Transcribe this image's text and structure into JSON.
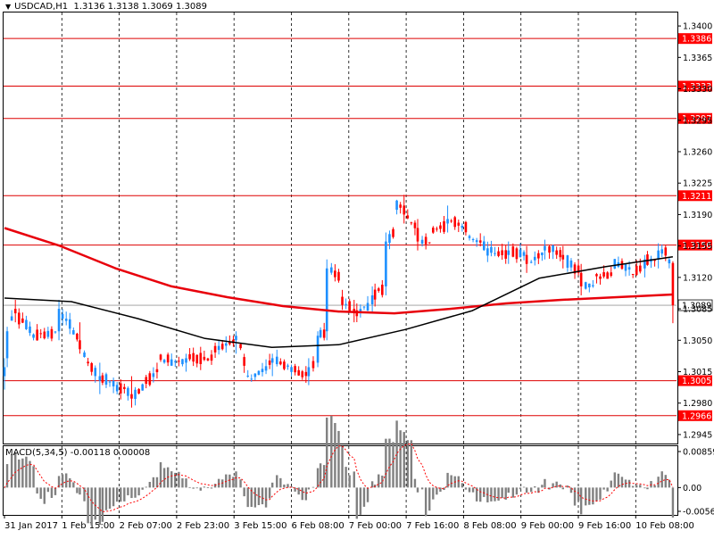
{
  "header": {
    "symbol_label": "USDCAD,H1",
    "ohlc_label": "1.3136 1.3138 1.3069 1.3089"
  },
  "macd_header": {
    "label": "MACD(5,34,5) -0.00118 0.00008"
  },
  "colors": {
    "bull": "#1e90ff",
    "bear": "#ff0000",
    "ma_slow": "#e8000b",
    "ma_fast": "#000000",
    "level_line": "#dd0000",
    "price_tag_bg": "#ff0000",
    "grid": "#000000",
    "macd_hist": "#808080",
    "macd_signal": "#ff0000"
  },
  "chart_data": {
    "type": "candlestick",
    "symbol": "USDCAD",
    "timeframe": "H1",
    "ylim": [
      1.2935,
      1.3415
    ],
    "y_ticks": [
      "1.3400",
      "1.3365",
      "1.3330",
      "1.3295",
      "1.3260",
      "1.3225",
      "1.3190",
      "1.3155",
      "1.3120",
      "1.3085",
      "1.3050",
      "1.3015",
      "1.2980",
      "1.2945"
    ],
    "x_tick_labels": [
      "31 Jan 2017",
      "1 Feb 15:00",
      "2 Feb 07:00",
      "2 Feb 23:00",
      "3 Feb 15:00",
      "6 Feb 08:00",
      "7 Feb 00:00",
      "7 Feb 16:00",
      "8 Feb 08:00",
      "9 Feb 00:00",
      "9 Feb 16:00",
      "10 Feb 08:00"
    ],
    "grid": "vertical dashed lines at each time label",
    "horizontal_levels": [
      {
        "value": 1.3386,
        "label": "1.3386"
      },
      {
        "value": 1.3333,
        "label": "1.3333"
      },
      {
        "value": 1.3297,
        "label": "1.3297"
      },
      {
        "value": 1.3211,
        "label": "1.3211"
      },
      {
        "value": 1.3156,
        "label": "1.3156"
      },
      {
        "value": 1.3005,
        "label": "1.3005"
      },
      {
        "value": 1.2966,
        "label": "1.2966"
      }
    ],
    "current_price": {
      "value": 1.3089,
      "label": "1.3089"
    },
    "moving_average_slow_red": [
      1.3175,
      1.3155,
      1.313,
      1.311,
      1.3098,
      1.3088,
      1.3082,
      1.308,
      1.3085,
      1.3091,
      1.3095,
      1.3098,
      1.3101
    ],
    "moving_average_fast_black": [
      1.3097,
      1.3093,
      1.3074,
      1.3052,
      1.3042,
      1.3045,
      1.3062,
      1.3083,
      1.3119,
      1.3132,
      1.3143
    ],
    "key_points": [
      {
        "t": 0,
        "o": 1.301,
        "h": 1.303,
        "l": 1.2995,
        "c": 1.302
      },
      {
        "t": 3,
        "o": 1.303,
        "h": 1.3065,
        "l": 1.302,
        "c": 1.306
      },
      {
        "t": 12,
        "o": 1.3085,
        "h": 1.3095,
        "l": 1.307,
        "c": 1.308
      },
      {
        "t": 30,
        "o": 1.306,
        "h": 1.3075,
        "l": 1.3045,
        "c": 1.3055
      },
      {
        "t": 60,
        "o": 1.306,
        "h": 1.3095,
        "l": 1.305,
        "c": 1.3085
      },
      {
        "t": 83,
        "o": 1.305,
        "h": 1.307,
        "l": 1.3035,
        "c": 1.304
      },
      {
        "t": 105,
        "o": 1.3005,
        "h": 1.3025,
        "l": 1.299,
        "c": 1.301
      },
      {
        "t": 140,
        "o": 1.299,
        "h": 1.301,
        "l": 1.2975,
        "c": 1.2985
      },
      {
        "t": 170,
        "o": 1.302,
        "h": 1.304,
        "l": 1.3005,
        "c": 1.303
      },
      {
        "t": 200,
        "o": 1.3025,
        "h": 1.3035,
        "l": 1.3015,
        "c": 1.303
      },
      {
        "t": 230,
        "o": 1.303,
        "h": 1.3045,
        "l": 1.302,
        "c": 1.304
      },
      {
        "t": 255,
        "o": 1.305,
        "h": 1.306,
        "l": 1.3035,
        "c": 1.3055
      },
      {
        "t": 262,
        "o": 1.304,
        "h": 1.306,
        "l": 1.303,
        "c": 1.3035
      },
      {
        "t": 270,
        "o": 1.3,
        "h": 1.301,
        "l": 1.299,
        "c": 1.3005
      },
      {
        "t": 295,
        "o": 1.3025,
        "h": 1.3035,
        "l": 1.301,
        "c": 1.303
      },
      {
        "t": 335,
        "o": 1.301,
        "h": 1.303,
        "l": 1.3,
        "c": 1.302
      },
      {
        "t": 345,
        "o": 1.3025,
        "h": 1.306,
        "l": 1.302,
        "c": 1.3055
      },
      {
        "t": 355,
        "o": 1.306,
        "h": 1.314,
        "l": 1.305,
        "c": 1.313
      },
      {
        "t": 370,
        "o": 1.312,
        "h": 1.3125,
        "l": 1.3085,
        "c": 1.3095
      },
      {
        "t": 385,
        "o": 1.3085,
        "h": 1.3095,
        "l": 1.307,
        "c": 1.308
      },
      {
        "t": 405,
        "o": 1.309,
        "h": 1.311,
        "l": 1.308,
        "c": 1.31
      },
      {
        "t": 420,
        "o": 1.311,
        "h": 1.317,
        "l": 1.31,
        "c": 1.316
      },
      {
        "t": 430,
        "o": 1.317,
        "h": 1.321,
        "l": 1.316,
        "c": 1.32
      },
      {
        "t": 440,
        "o": 1.32,
        "h": 1.3212,
        "l": 1.318,
        "c": 1.319
      },
      {
        "t": 455,
        "o": 1.3175,
        "h": 1.3185,
        "l": 1.315,
        "c": 1.316
      },
      {
        "t": 470,
        "o": 1.316,
        "h": 1.3175,
        "l": 1.315,
        "c": 1.317
      },
      {
        "t": 488,
        "o": 1.318,
        "h": 1.32,
        "l": 1.317,
        "c": 1.3185
      },
      {
        "t": 510,
        "o": 1.3175,
        "h": 1.319,
        "l": 1.316,
        "c": 1.3165
      },
      {
        "t": 530,
        "o": 1.3155,
        "h": 1.3165,
        "l": 1.314,
        "c": 1.315
      },
      {
        "t": 555,
        "o": 1.3145,
        "h": 1.316,
        "l": 1.3135,
        "c": 1.315
      },
      {
        "t": 575,
        "o": 1.3145,
        "h": 1.3155,
        "l": 1.3125,
        "c": 1.3135
      },
      {
        "t": 595,
        "o": 1.315,
        "h": 1.3162,
        "l": 1.314,
        "c": 1.3155
      },
      {
        "t": 615,
        "o": 1.3145,
        "h": 1.3155,
        "l": 1.313,
        "c": 1.314
      },
      {
        "t": 635,
        "o": 1.3125,
        "h": 1.3135,
        "l": 1.31,
        "c": 1.311
      },
      {
        "t": 650,
        "o": 1.311,
        "h": 1.313,
        "l": 1.3095,
        "c": 1.312
      },
      {
        "t": 670,
        "o": 1.3125,
        "h": 1.314,
        "l": 1.3115,
        "c": 1.3135
      },
      {
        "t": 690,
        "o": 1.313,
        "h": 1.314,
        "l": 1.312,
        "c": 1.3125
      },
      {
        "t": 705,
        "o": 1.313,
        "h": 1.3145,
        "l": 1.312,
        "c": 1.314
      },
      {
        "t": 720,
        "o": 1.314,
        "h": 1.3158,
        "l": 1.313,
        "c": 1.315
      },
      {
        "t": 730,
        "o": 1.315,
        "h": 1.3155,
        "l": 1.313,
        "c": 1.3136
      },
      {
        "t": 736,
        "o": 1.3136,
        "h": 1.3138,
        "l": 1.3069,
        "c": 1.3089
      }
    ],
    "macd": {
      "label": "MACD(5,34,5) -0.00118 0.00008",
      "ylim": [
        -0.00567,
        0.00859
      ],
      "y_ticks": [
        "0.00859",
        "0.00",
        "-0.00567"
      ]
    }
  }
}
